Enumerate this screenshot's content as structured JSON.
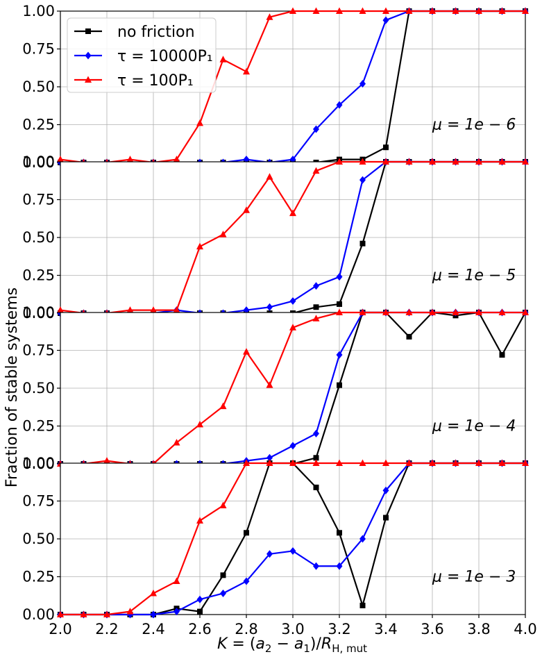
{
  "chart_data": {
    "type": "line",
    "ylabel": "Fraction of stable systems",
    "xlabel": "K = (a₂ − a₁)/R_{H,mut}",
    "xlim": [
      2.0,
      4.0
    ],
    "ylim": [
      0.0,
      1.0
    ],
    "x_ticks": [
      "2.0",
      "2.2",
      "2.4",
      "2.6",
      "2.8",
      "3.0",
      "3.2",
      "3.4",
      "3.6",
      "3.8",
      "4.0"
    ],
    "y_ticks": [
      "0.00",
      "0.25",
      "0.50",
      "0.75",
      "1.00"
    ],
    "grid": true,
    "legend_placement": "top-left of first panel",
    "series_styles": [
      {
        "name": "no friction",
        "color": "#000000",
        "marker": "square"
      },
      {
        "name": "τ = 10000P₁",
        "color": "#0000ff",
        "marker": "diamond"
      },
      {
        "name": "τ = 100P₁",
        "color": "#ff0000",
        "marker": "triangle"
      }
    ],
    "x": [
      2.0,
      2.1,
      2.2,
      2.3,
      2.4,
      2.5,
      2.6,
      2.7,
      2.8,
      2.9,
      3.0,
      3.1,
      3.2,
      3.3,
      3.4,
      3.5,
      3.6,
      3.7,
      3.8,
      3.9,
      4.0
    ],
    "panels": [
      {
        "annotation": "μ = 1e − 6",
        "series": [
          {
            "name": "no friction",
            "values": [
              0,
              0,
              0,
              0,
              0,
              0,
              0,
              0,
              0,
              0,
              0,
              0,
              0.02,
              0.02,
              0.1,
              1,
              1,
              1,
              1,
              1,
              1
            ]
          },
          {
            "name": "τ = 10000P₁",
            "values": [
              0,
              0,
              0,
              0,
              0,
              0,
              0,
              0,
              0.02,
              0,
              0.02,
              0.22,
              0.38,
              0.52,
              0.94,
              1,
              1,
              1,
              1,
              1,
              1
            ]
          },
          {
            "name": "τ = 100P₁",
            "values": [
              0.02,
              0,
              0,
              0.02,
              0,
              0.02,
              0.26,
              0.68,
              0.6,
              0.96,
              1,
              1,
              1,
              1,
              1,
              1,
              1,
              1,
              1,
              1,
              1
            ]
          }
        ]
      },
      {
        "annotation": "μ = 1e − 5",
        "series": [
          {
            "name": "no friction",
            "values": [
              0,
              0,
              0,
              0,
              0,
              0,
              0,
              0,
              0,
              0,
              0,
              0.04,
              0.06,
              0.46,
              1,
              1,
              1,
              1,
              1,
              1,
              1
            ]
          },
          {
            "name": "τ = 10000P₁",
            "values": [
              0,
              0,
              0,
              0,
              0,
              0.02,
              0,
              0,
              0.02,
              0.04,
              0.08,
              0.18,
              0.24,
              0.88,
              1,
              1,
              1,
              1,
              1,
              1,
              1
            ]
          },
          {
            "name": "τ = 100P₁",
            "values": [
              0.02,
              0,
              0,
              0.02,
              0.02,
              0.02,
              0.44,
              0.52,
              0.68,
              0.9,
              0.66,
              0.94,
              1,
              1,
              1,
              1,
              1,
              1,
              1,
              1,
              1
            ]
          }
        ]
      },
      {
        "annotation": "μ = 1e − 4",
        "series": [
          {
            "name": "no friction",
            "values": [
              0,
              0,
              0,
              0,
              0,
              0,
              0,
              0,
              0,
              0,
              0,
              0.04,
              0.52,
              1,
              1,
              0.84,
              1,
              0.98,
              1,
              0.72,
              1
            ]
          },
          {
            "name": "τ = 10000P₁",
            "values": [
              0,
              0,
              0,
              0,
              0,
              0,
              0,
              0,
              0.02,
              0.04,
              0.12,
              0.2,
              0.72,
              1,
              1,
              1,
              1,
              1,
              1,
              1,
              1
            ]
          },
          {
            "name": "τ = 100P₁",
            "values": [
              0,
              0,
              0.02,
              0,
              0,
              0.14,
              0.26,
              0.38,
              0.74,
              0.52,
              0.9,
              0.96,
              1,
              1,
              1,
              1,
              1,
              1,
              1,
              1,
              1
            ]
          }
        ]
      },
      {
        "annotation": "μ = 1e − 3",
        "series": [
          {
            "name": "no friction",
            "values": [
              0,
              0,
              0,
              0,
              0,
              0.04,
              0.02,
              0.26,
              0.54,
              1,
              1,
              0.84,
              0.54,
              0.06,
              0.64,
              1,
              1,
              1,
              1,
              1,
              1
            ]
          },
          {
            "name": "τ = 10000P₁",
            "values": [
              0,
              0,
              0,
              0,
              0,
              0.02,
              0.1,
              0.14,
              0.22,
              0.4,
              0.42,
              0.32,
              0.32,
              0.5,
              0.82,
              1,
              1,
              1,
              1,
              1,
              1
            ]
          },
          {
            "name": "τ = 100P₁",
            "values": [
              0,
              0,
              0,
              0.02,
              0.14,
              0.22,
              0.62,
              0.72,
              1,
              1,
              1,
              1,
              1,
              1,
              1,
              1,
              1,
              1,
              1,
              1,
              1
            ]
          }
        ]
      }
    ]
  }
}
